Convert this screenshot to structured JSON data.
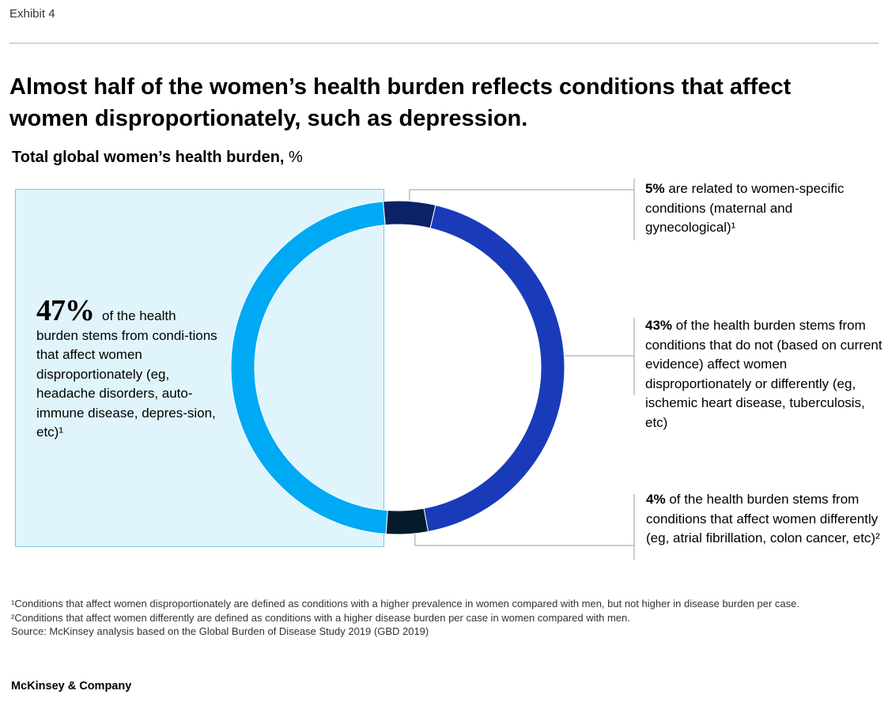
{
  "header": {
    "exhibit": "Exhibit 4",
    "headline": "Almost half of the women’s health burden reflects conditions that affect women disproportionately, such as depression.",
    "subtitle_bold": "Total global women’s health burden,",
    "subtitle_unit": "%"
  },
  "chart_data": {
    "type": "pie",
    "style": "donut",
    "title": "Total global women’s health burden, %",
    "categories": [
      "women-specific conditions (maternal and gynecological)",
      "conditions that do not affect women disproportionately or differently",
      "conditions that affect women differently",
      "conditions that affect women disproportionately"
    ],
    "values": [
      5,
      43,
      4,
      47
    ],
    "colors": [
      "#0c2268",
      "#1a3bb9",
      "#051b2c",
      "#00a9f4"
    ]
  },
  "annotations": {
    "left": {
      "pct": "47%",
      "text": "of the health burden stems from condi-tions that affect women disproportionately (eg, headache disorders, auto-immune disease, depres-sion, etc)¹"
    },
    "women_specific": {
      "pct": "5%",
      "text": "are related to women-specific conditions (maternal and gynecological)¹"
    },
    "not_disproportionate": {
      "pct": "43%",
      "text": "of the health burden stems from conditions that do not (based on current evidence) affect women disproportionately or differently (eg, ischemic heart disease, tuberculosis, etc)"
    },
    "differently": {
      "pct": "4%",
      "text": "of the health burden stems from conditions that affect women differently (eg, atrial fibrillation, colon cancer, etc)²"
    }
  },
  "footnotes": {
    "note1": "¹Conditions that affect women disproportionately are defined as conditions with a higher prevalence in women compared with men, but not higher in disease burden per case.",
    "note2": "²Conditions that affect women differently are defined as conditions with a higher disease burden per case in women compared with men.",
    "source": "Source: McKinsey analysis based on the Global Burden of Disease Study 2019 (GBD 2019)"
  },
  "brand": "McKinsey & Company"
}
